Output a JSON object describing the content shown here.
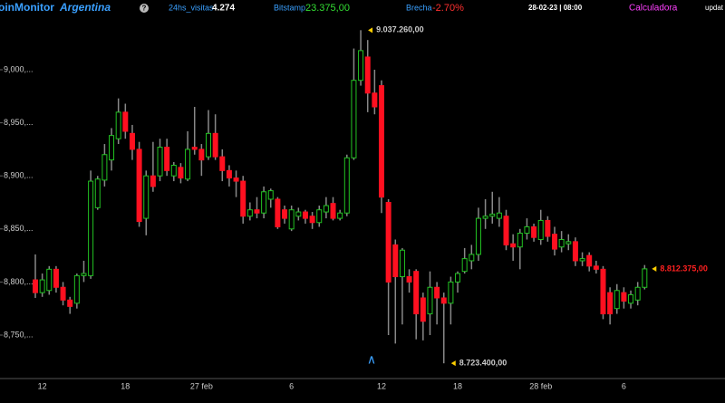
{
  "header": {
    "brand": "oinMonitor",
    "region": "Argentina",
    "help": "?",
    "visits_label": "24hs_visitas",
    "visits": "4.274",
    "bitstamp_label": "Bitstamp",
    "bitstamp": "23.375,00",
    "brecha_label": "Brecha",
    "brecha": "-2.70%",
    "datetime": "28-02-23 | 08:00",
    "calculator": "Calculadora",
    "update": "updat"
  },
  "chart_data": {
    "type": "candlestick",
    "categories": [
      null,
      "12",
      null,
      null,
      null,
      null,
      null,
      null,
      null,
      null,
      null,
      null,
      null,
      "18",
      null,
      null,
      null,
      null,
      null,
      null,
      null,
      null,
      null,
      null,
      "27 feb",
      null,
      null,
      null,
      null,
      null,
      null,
      null,
      null,
      null,
      null,
      null,
      null,
      "6",
      null,
      null,
      null,
      null,
      null,
      null,
      null,
      null,
      null,
      null,
      null,
      null,
      "12",
      null,
      null,
      null,
      null,
      null,
      null,
      null,
      null,
      null,
      null,
      "18",
      null,
      null,
      null,
      null,
      null,
      null,
      null,
      null,
      null,
      null,
      null,
      "28 feb",
      null,
      null,
      null,
      null,
      null,
      null,
      null,
      null,
      null,
      null,
      null,
      "6",
      null,
      null,
      null
    ],
    "open": [
      8802000,
      8790000,
      8792000,
      8812000,
      8795000,
      8783000,
      8780000,
      8806000,
      8806000,
      8870000,
      8896000,
      8915000,
      8935000,
      8960000,
      8940000,
      8925000,
      8860000,
      8900000,
      8900000,
      8927000,
      8900000,
      8908000,
      8897000,
      8927000,
      8925000,
      8918000,
      8940000,
      8918000,
      8905000,
      8898000,
      8895000,
      8862000,
      8868000,
      8865000,
      8878000,
      8878000,
      8868000,
      8850000,
      8862000,
      8866000,
      8862000,
      8856000,
      8866000,
      8874000,
      8860000,
      8865000,
      8917000,
      8990000,
      9012000,
      8978000,
      8985000,
      8875000,
      8835000,
      8805000,
      8805000,
      8810000,
      8785000,
      8770000,
      8795000,
      8785000,
      8780000,
      8800000,
      8810000,
      8820000,
      8826000,
      8860000,
      8862000,
      8860000,
      8862000,
      8836000,
      8833000,
      8846000,
      8852000,
      8840000,
      8858000,
      8845000,
      8833000,
      8836000,
      8838000,
      8820000,
      8825000,
      8815000,
      8812000,
      8790000,
      8775000,
      8790000,
      8780000,
      8783000,
      8795000
    ],
    "high": [
      8826000,
      8808000,
      8815000,
      8815000,
      8800000,
      8786000,
      8808000,
      8820000,
      8905000,
      8900000,
      8930000,
      8945000,
      8973000,
      8968000,
      8948000,
      8932000,
      8905000,
      8932000,
      8935000,
      8935000,
      8913000,
      8912000,
      8942000,
      8965000,
      8930000,
      8962000,
      8958000,
      8925000,
      8910000,
      8905000,
      8900000,
      8875000,
      8880000,
      8890000,
      8888000,
      8880000,
      8872000,
      8872000,
      8870000,
      8868000,
      8866000,
      8872000,
      8880000,
      8880000,
      8868000,
      8920000,
      9020000,
      9037260,
      9028000,
      9000000,
      8990000,
      8878000,
      8840000,
      8832000,
      8812000,
      8812000,
      8790000,
      8810000,
      8800000,
      8790000,
      8805000,
      8810000,
      8832000,
      8835000,
      8870000,
      8878000,
      8885000,
      8880000,
      8868000,
      8845000,
      8850000,
      8860000,
      8855000,
      8868000,
      8862000,
      8852000,
      8848000,
      8845000,
      8842000,
      8828000,
      8828000,
      8820000,
      8815000,
      8795000,
      8798000,
      8795000,
      8792000,
      8800000,
      8816000
    ],
    "low": [
      8785000,
      8786000,
      8788000,
      8790000,
      8778000,
      8770000,
      8775000,
      8800000,
      8803000,
      8868000,
      8890000,
      8905000,
      8930000,
      8935000,
      8915000,
      8852000,
      8844000,
      8885000,
      8895000,
      8900000,
      8895000,
      8893000,
      8895000,
      8920000,
      8900000,
      8915000,
      8915000,
      8895000,
      8890000,
      8880000,
      8855000,
      8858000,
      8860000,
      8860000,
      8870000,
      8850000,
      8855000,
      8848000,
      8858000,
      8855000,
      8850000,
      8852000,
      8860000,
      8858000,
      8858000,
      8862000,
      8915000,
      8985000,
      8960000,
      8958000,
      8865000,
      8750000,
      8742000,
      8760000,
      8790000,
      8746000,
      8745000,
      8750000,
      8760000,
      8723400,
      8760000,
      8790000,
      8808000,
      8812000,
      8820000,
      8850000,
      8855000,
      8852000,
      8830000,
      8820000,
      8812000,
      8840000,
      8838000,
      8835000,
      8838000,
      8825000,
      8828000,
      8830000,
      8815000,
      8815000,
      8810000,
      8808000,
      8765000,
      8760000,
      8770000,
      8775000,
      8775000,
      8778000,
      8793000
    ],
    "close": [
      8790000,
      8802000,
      8812000,
      8795000,
      8783000,
      8777000,
      8806000,
      8808000,
      8895000,
      8897000,
      8920000,
      8938000,
      8960000,
      8942000,
      8925000,
      8857000,
      8900000,
      8890000,
      8927000,
      8905000,
      8910000,
      8898000,
      8925000,
      8925000,
      8915000,
      8940000,
      8918000,
      8905000,
      8898000,
      8895000,
      8862000,
      8868000,
      8865000,
      8885000,
      8886000,
      8852000,
      8860000,
      8868000,
      8866000,
      8860000,
      8856000,
      8868000,
      8872000,
      8860000,
      8865000,
      8917000,
      8990000,
      9018000,
      8978000,
      8965000,
      8880000,
      8800000,
      8805000,
      8830000,
      8800000,
      8770000,
      8763000,
      8795000,
      8785000,
      8780000,
      8800000,
      8808000,
      8822000,
      8826000,
      8860000,
      8862000,
      8864000,
      8865000,
      8835000,
      8833000,
      8846000,
      8852000,
      8842000,
      8858000,
      8843000,
      8831000,
      8840000,
      8838000,
      8820000,
      8822000,
      8815000,
      8812000,
      8770000,
      8770000,
      8792000,
      8782000,
      8788000,
      8795000,
      8812375
    ],
    "up_color": "#22c322",
    "down_color": "#ff1020",
    "ylim": [
      8711600,
      9052900
    ],
    "yticks": [
      {
        "value": 8750000,
        "label": "8,750,..."
      },
      {
        "value": 8800000,
        "label": "8,800,..."
      },
      {
        "value": 8850000,
        "label": "8,850,..."
      },
      {
        "value": 8900000,
        "label": "8,900,..."
      },
      {
        "value": 8950000,
        "label": "8,950,..."
      },
      {
        "value": 9000000,
        "label": "9,000,..."
      }
    ],
    "annotations": [
      {
        "value": 9037260,
        "label": "9.037.260,00",
        "color": "#cccccc"
      },
      {
        "value": 8723400,
        "label": "8.723.400,00",
        "color": "#cccccc"
      },
      {
        "value": 8812375,
        "label": "8.812.375,00",
        "color": "#ff2020"
      }
    ]
  }
}
